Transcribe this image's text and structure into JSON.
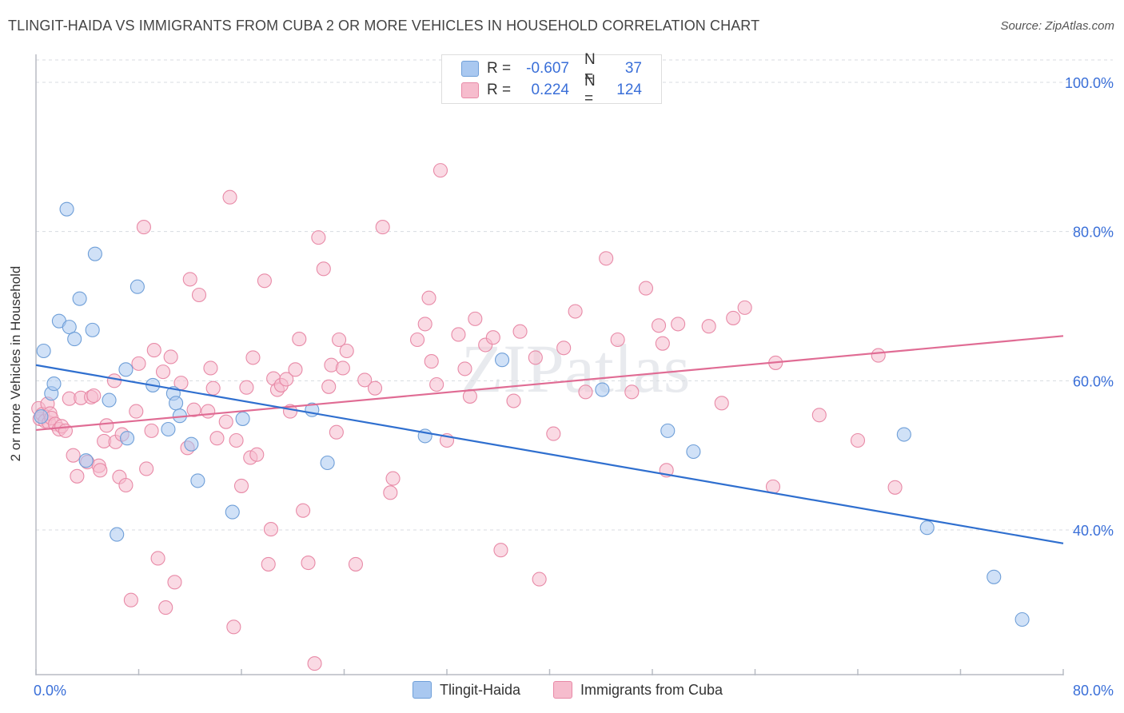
{
  "title": "TLINGIT-HAIDA VS IMMIGRANTS FROM CUBA 2 OR MORE VEHICLES IN HOUSEHOLD CORRELATION CHART",
  "source": "Source: ZipAtlas.com",
  "watermark": "ZIPatlas",
  "stats": {
    "r_label": "R =",
    "n_label": "N =",
    "rows": [
      {
        "r": "-0.607",
        "n": "37"
      },
      {
        "r": "0.224",
        "n": "124"
      }
    ]
  },
  "legend": [
    "Tlingit-Haida",
    "Immigrants from Cuba"
  ],
  "chart_data": {
    "type": "scatter",
    "title": "TLINGIT-HAIDA VS IMMIGRANTS FROM CUBA 2 OR MORE VEHICLES IN HOUSEHOLD CORRELATION CHART",
    "xlabel": "",
    "ylabel": "2 or more Vehicles in Household",
    "xlim": [
      0,
      80
    ],
    "ylim": [
      22,
      103
    ],
    "x_tick_labels": [
      "0.0%",
      "80.0%"
    ],
    "y_ticks": [
      40,
      60,
      80,
      100
    ],
    "y_tick_labels": [
      "40.0%",
      "60.0%",
      "80.0%",
      "100.0%"
    ],
    "grid": true,
    "legend_position": "bottom-center",
    "colors": {
      "Tlingit-Haida": {
        "fill": "#a9c8f0",
        "stroke": "#6f9fd8",
        "line": "#2f6fcf"
      },
      "Immigrants from Cuba": {
        "fill": "#f6bccd",
        "stroke": "#e88aa7",
        "line": "#e06c94"
      }
    },
    "series": [
      {
        "name": "Tlingit-Haida",
        "r": -0.607,
        "n": 37,
        "trend": {
          "x": [
            0,
            80
          ],
          "y": [
            62.1,
            38.2
          ]
        },
        "points": [
          [
            0.4,
            55.2
          ],
          [
            0.6,
            64.0
          ],
          [
            1.2,
            58.3
          ],
          [
            1.4,
            59.6
          ],
          [
            1.8,
            68.0
          ],
          [
            2.4,
            83.0
          ],
          [
            2.6,
            67.2
          ],
          [
            3.0,
            65.6
          ],
          [
            3.4,
            71.0
          ],
          [
            3.9,
            49.3
          ],
          [
            4.4,
            66.8
          ],
          [
            4.6,
            77.0
          ],
          [
            5.7,
            57.4
          ],
          [
            6.3,
            39.4
          ],
          [
            7.0,
            61.5
          ],
          [
            7.1,
            52.3
          ],
          [
            7.9,
            72.6
          ],
          [
            9.1,
            59.4
          ],
          [
            10.3,
            53.5
          ],
          [
            10.7,
            58.3
          ],
          [
            10.9,
            57.0
          ],
          [
            11.2,
            55.3
          ],
          [
            12.1,
            51.5
          ],
          [
            12.6,
            46.6
          ],
          [
            15.3,
            42.4
          ],
          [
            16.1,
            54.9
          ],
          [
            21.5,
            56.1
          ],
          [
            22.7,
            49.0
          ],
          [
            30.3,
            52.6
          ],
          [
            36.3,
            62.8
          ],
          [
            44.1,
            58.8
          ],
          [
            49.2,
            53.3
          ],
          [
            51.2,
            50.5
          ],
          [
            67.6,
            52.8
          ],
          [
            69.4,
            40.3
          ],
          [
            74.6,
            33.7
          ],
          [
            76.8,
            28.0
          ]
        ]
      },
      {
        "name": "Immigrants from Cuba",
        "r": 0.224,
        "n": 124,
        "trend": {
          "x": [
            0,
            80
          ],
          "y": [
            53.4,
            66.0
          ]
        },
        "points": [
          [
            0.2,
            56.3
          ],
          [
            0.3,
            54.9
          ],
          [
            0.5,
            55.5
          ],
          [
            0.7,
            54.6
          ],
          [
            0.9,
            56.9
          ],
          [
            1.0,
            54.4
          ],
          [
            1.1,
            55.6
          ],
          [
            1.2,
            55.0
          ],
          [
            1.5,
            54.2
          ],
          [
            1.8,
            53.5
          ],
          [
            2.0,
            53.9
          ],
          [
            2.3,
            53.3
          ],
          [
            2.6,
            57.6
          ],
          [
            2.9,
            50.0
          ],
          [
            3.2,
            47.2
          ],
          [
            3.5,
            57.7
          ],
          [
            4.0,
            49.1
          ],
          [
            4.3,
            57.8
          ],
          [
            4.5,
            58.0
          ],
          [
            4.9,
            48.6
          ],
          [
            5.0,
            48.0
          ],
          [
            5.3,
            51.9
          ],
          [
            5.5,
            54.0
          ],
          [
            6.1,
            60.0
          ],
          [
            6.2,
            51.8
          ],
          [
            6.5,
            47.1
          ],
          [
            6.7,
            52.8
          ],
          [
            7.0,
            46.0
          ],
          [
            7.4,
            30.6
          ],
          [
            7.8,
            55.9
          ],
          [
            8.0,
            62.3
          ],
          [
            8.4,
            80.6
          ],
          [
            8.6,
            48.2
          ],
          [
            9.0,
            53.3
          ],
          [
            9.2,
            64.1
          ],
          [
            9.5,
            36.2
          ],
          [
            9.9,
            61.2
          ],
          [
            10.1,
            29.6
          ],
          [
            10.5,
            63.2
          ],
          [
            10.8,
            33.0
          ],
          [
            11.3,
            59.7
          ],
          [
            11.8,
            51.0
          ],
          [
            12.0,
            73.6
          ],
          [
            12.3,
            56.1
          ],
          [
            12.7,
            71.5
          ],
          [
            13.4,
            55.9
          ],
          [
            13.6,
            61.7
          ],
          [
            13.8,
            59.0
          ],
          [
            14.1,
            52.3
          ],
          [
            14.8,
            54.5
          ],
          [
            15.1,
            84.6
          ],
          [
            15.4,
            27.0
          ],
          [
            15.6,
            52.0
          ],
          [
            16.0,
            45.9
          ],
          [
            16.4,
            59.1
          ],
          [
            16.7,
            49.7
          ],
          [
            16.9,
            63.1
          ],
          [
            17.2,
            50.1
          ],
          [
            17.8,
            73.4
          ],
          [
            18.1,
            35.4
          ],
          [
            18.3,
            40.1
          ],
          [
            18.5,
            60.3
          ],
          [
            18.8,
            58.8
          ],
          [
            19.1,
            59.4
          ],
          [
            19.5,
            60.2
          ],
          [
            19.8,
            55.9
          ],
          [
            20.2,
            61.5
          ],
          [
            20.5,
            65.6
          ],
          [
            20.8,
            42.6
          ],
          [
            21.2,
            35.6
          ],
          [
            21.7,
            22.1
          ],
          [
            22.0,
            79.2
          ],
          [
            22.4,
            75.0
          ],
          [
            22.8,
            59.2
          ],
          [
            23.0,
            62.1
          ],
          [
            23.4,
            53.1
          ],
          [
            23.6,
            65.5
          ],
          [
            23.9,
            61.7
          ],
          [
            24.2,
            64.0
          ],
          [
            24.9,
            35.4
          ],
          [
            25.6,
            60.1
          ],
          [
            26.4,
            59.0
          ],
          [
            27.0,
            80.6
          ],
          [
            27.6,
            45.0
          ],
          [
            27.8,
            46.9
          ],
          [
            29.7,
            65.5
          ],
          [
            30.3,
            67.6
          ],
          [
            30.6,
            71.1
          ],
          [
            30.8,
            62.6
          ],
          [
            31.2,
            59.5
          ],
          [
            31.5,
            88.2
          ],
          [
            32.0,
            52.0
          ],
          [
            32.9,
            66.2
          ],
          [
            33.4,
            61.6
          ],
          [
            33.8,
            57.9
          ],
          [
            34.2,
            68.3
          ],
          [
            35.0,
            64.8
          ],
          [
            35.6,
            65.8
          ],
          [
            36.2,
            37.3
          ],
          [
            37.2,
            57.3
          ],
          [
            37.7,
            66.6
          ],
          [
            38.9,
            63.1
          ],
          [
            39.2,
            33.4
          ],
          [
            40.3,
            52.9
          ],
          [
            41.1,
            64.4
          ],
          [
            42.0,
            69.3
          ],
          [
            42.8,
            58.5
          ],
          [
            44.4,
            76.4
          ],
          [
            45.3,
            65.5
          ],
          [
            46.4,
            58.5
          ],
          [
            47.5,
            72.4
          ],
          [
            48.5,
            67.4
          ],
          [
            48.8,
            65.0
          ],
          [
            49.1,
            48.0
          ],
          [
            50.0,
            67.6
          ],
          [
            52.4,
            67.3
          ],
          [
            53.4,
            57.0
          ],
          [
            54.3,
            68.4
          ],
          [
            55.2,
            69.8
          ],
          [
            57.4,
            45.8
          ],
          [
            57.6,
            62.4
          ],
          [
            61.0,
            55.4
          ],
          [
            64.0,
            52.0
          ],
          [
            65.6,
            63.4
          ],
          [
            66.9,
            45.7
          ]
        ]
      }
    ]
  }
}
